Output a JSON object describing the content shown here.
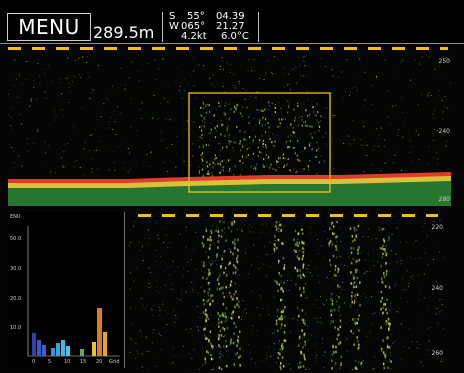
{
  "header": {
    "menu_label": "MENU",
    "depth": "289.5m",
    "lat_hemi": "S",
    "lat_deg": "55°",
    "lat_min": "04.39",
    "lon_hemi": "W",
    "lon_deg": "065°",
    "lon_min": "21.27",
    "speed": "4.2kt",
    "temp": "6.0°C"
  },
  "upper_echo": {
    "range_labels": [
      "250",
      "240",
      "280"
    ]
  },
  "lower_echo": {
    "range_labels": [
      "220",
      "240",
      "260"
    ]
  },
  "histogram": {
    "y_labels": [
      "ENU",
      "50.0",
      "30.0",
      "20.0",
      "10.0"
    ],
    "x_labels": [
      "0",
      "5",
      "10",
      "15",
      "20",
      "Grid"
    ]
  },
  "colors": {
    "accent_yellow": "#f2c10c",
    "seabed_red": "#e23a2c",
    "seabed_green": "#3fb14a"
  }
}
